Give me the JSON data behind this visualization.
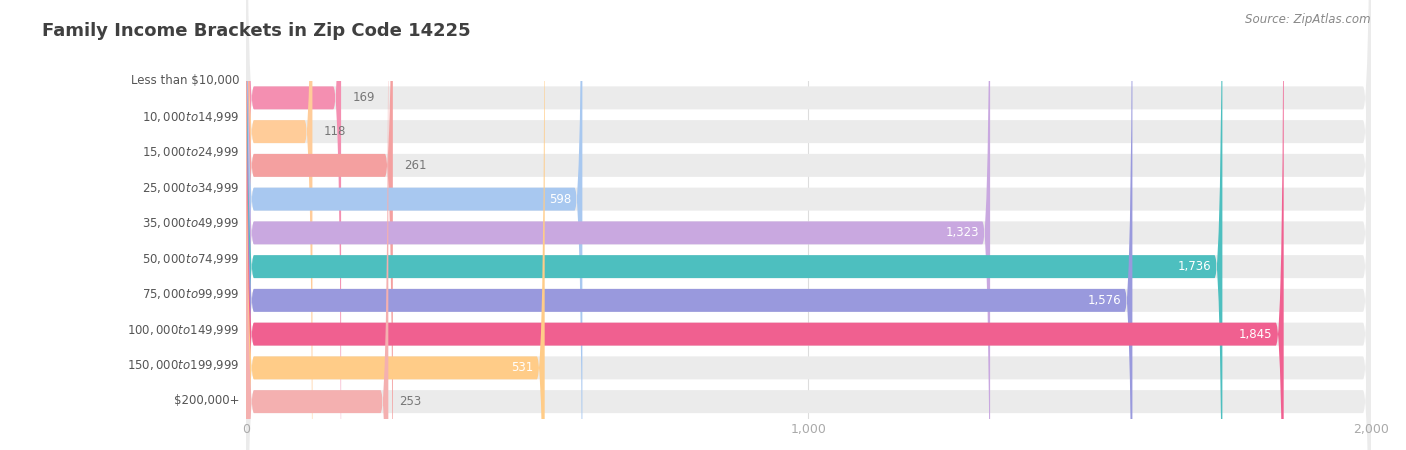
{
  "title": "Family Income Brackets in Zip Code 14225",
  "source": "Source: ZipAtlas.com",
  "categories": [
    "Less than $10,000",
    "$10,000 to $14,999",
    "$15,000 to $24,999",
    "$25,000 to $34,999",
    "$35,000 to $49,999",
    "$50,000 to $74,999",
    "$75,000 to $99,999",
    "$100,000 to $149,999",
    "$150,000 to $199,999",
    "$200,000+"
  ],
  "values": [
    169,
    118,
    261,
    598,
    1323,
    1736,
    1576,
    1845,
    531,
    253
  ],
  "bar_colors": [
    "#F48FB1",
    "#FFCC99",
    "#F4A0A0",
    "#A8C8F0",
    "#C9A8E0",
    "#4DBFBF",
    "#9999DD",
    "#F06090",
    "#FFCC88",
    "#F4B0B0"
  ],
  "xlim": [
    0,
    2000
  ],
  "background_color": "#ffffff",
  "bar_bg_color": "#ebebeb",
  "label_color": "#555555",
  "title_color": "#404040",
  "value_color_dark": "#777777",
  "value_color_light": "#ffffff",
  "source_color": "#888888",
  "grid_color": "#dddddd",
  "tick_color": "#aaaaaa",
  "value_threshold": 450
}
